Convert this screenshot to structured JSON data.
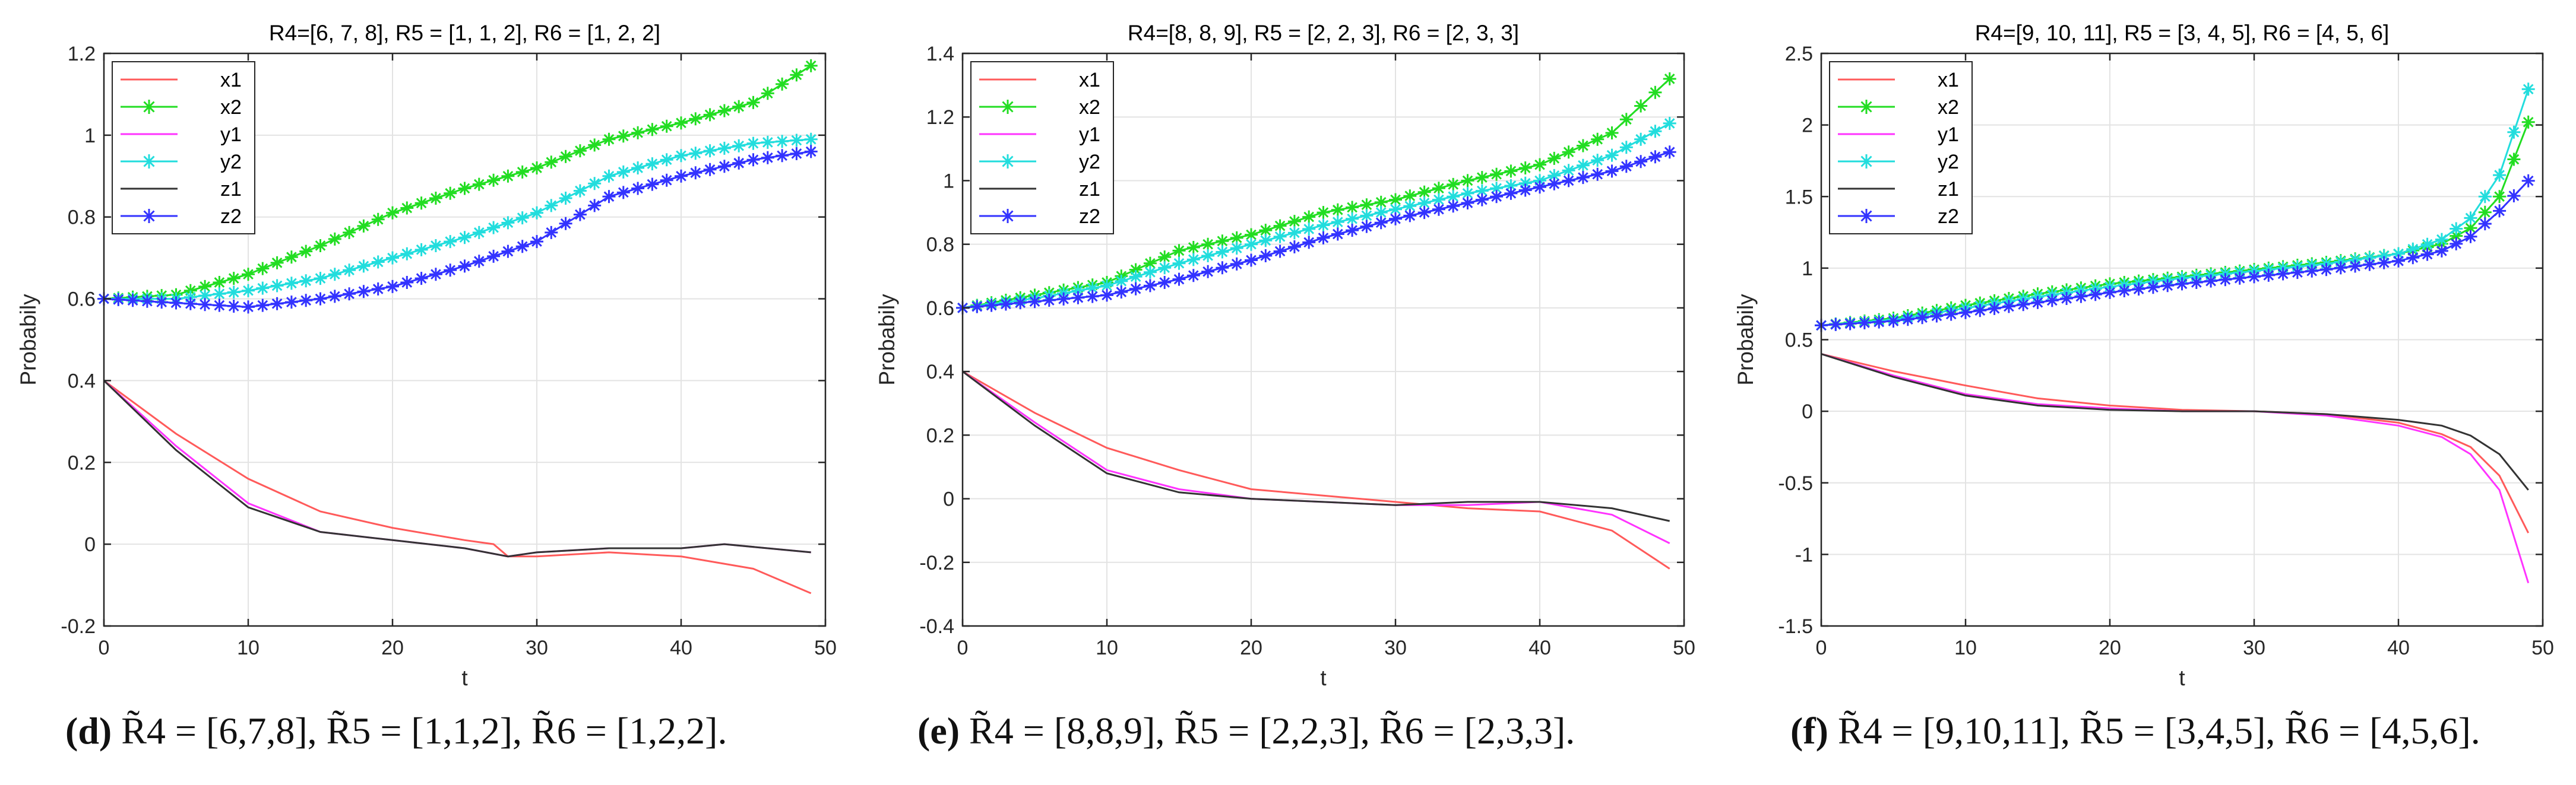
{
  "chart_data": [
    {
      "type": "line",
      "title": "R4=[6, 7, 8], R5 = [1, 1, 2], R6 = [1, 2, 2]",
      "xlabel": "t",
      "ylabel": "Probabily",
      "xlim": [
        0,
        50
      ],
      "ylim": [
        -0.2,
        1.2
      ],
      "xticks": [
        0,
        10,
        20,
        30,
        40,
        50
      ],
      "yticks": [
        -0.2,
        0,
        0.2,
        0.4,
        0.6,
        0.8,
        1,
        1.2
      ],
      "xtick_labels": [
        "0",
        "10",
        "20",
        "30",
        "40",
        "50"
      ],
      "ytick_labels": [
        "-0.2",
        "0",
        "0.2",
        "0.4",
        "0.6",
        "0.8",
        "1",
        "1.2"
      ],
      "grid": true,
      "legend": "top-left",
      "caption": {
        "letter": "(d)",
        "text": "R̃4 = [6,7,8], R̃5 = [1,1,2], R̃6 = [1,2,2]."
      },
      "series": [
        {
          "name": "x1",
          "color": "#ff5a5a",
          "marker": "none",
          "x": [
            0,
            5,
            10,
            15,
            20,
            25,
            27,
            28,
            30,
            35,
            40,
            45,
            49
          ],
          "y": [
            0.4,
            0.27,
            0.16,
            0.08,
            0.04,
            0.01,
            0.0,
            -0.03,
            -0.03,
            -0.02,
            -0.03,
            -0.06,
            -0.12
          ]
        },
        {
          "name": "x2",
          "color": "#22dd22",
          "marker": "star",
          "x": [
            0,
            5,
            10,
            15,
            20,
            25,
            30,
            35,
            40,
            45,
            49
          ],
          "y": [
            0.6,
            0.61,
            0.66,
            0.73,
            0.81,
            0.87,
            0.92,
            0.99,
            1.03,
            1.08,
            1.17
          ]
        },
        {
          "name": "y1",
          "color": "#ff33ff",
          "marker": "none",
          "x": [
            0,
            5,
            10,
            15,
            20,
            25,
            28,
            30,
            35,
            40,
            43,
            49
          ],
          "y": [
            0.4,
            0.24,
            0.1,
            0.03,
            0.01,
            -0.01,
            -0.03,
            -0.02,
            -0.01,
            -0.01,
            0.0,
            -0.02
          ]
        },
        {
          "name": "y2",
          "color": "#22dddd",
          "marker": "star",
          "x": [
            0,
            5,
            10,
            15,
            20,
            25,
            30,
            35,
            40,
            45,
            49
          ],
          "y": [
            0.6,
            0.6,
            0.62,
            0.65,
            0.7,
            0.75,
            0.81,
            0.9,
            0.95,
            0.98,
            0.99
          ]
        },
        {
          "name": "z1",
          "color": "#333333",
          "marker": "none",
          "x": [
            0,
            5,
            10,
            15,
            20,
            25,
            28,
            30,
            35,
            40,
            43,
            49
          ],
          "y": [
            0.4,
            0.23,
            0.09,
            0.03,
            0.01,
            -0.01,
            -0.03,
            -0.02,
            -0.01,
            -0.01,
            0.0,
            -0.02
          ]
        },
        {
          "name": "z2",
          "color": "#3333ff",
          "marker": "star",
          "x": [
            0,
            5,
            10,
            15,
            20,
            25,
            30,
            35,
            40,
            45,
            49
          ],
          "y": [
            0.6,
            0.59,
            0.58,
            0.6,
            0.63,
            0.68,
            0.74,
            0.85,
            0.9,
            0.94,
            0.96
          ]
        }
      ]
    },
    {
      "type": "line",
      "title": "R4=[8, 8, 9], R5 = [2, 2, 3], R6 = [2, 3, 3]",
      "xlabel": "t",
      "ylabel": "Probabily",
      "xlim": [
        0,
        50
      ],
      "ylim": [
        -0.4,
        1.4
      ],
      "xticks": [
        0,
        10,
        20,
        30,
        40,
        50
      ],
      "yticks": [
        -0.4,
        -0.2,
        0,
        0.2,
        0.4,
        0.6,
        0.8,
        1,
        1.2,
        1.4
      ],
      "xtick_labels": [
        "0",
        "10",
        "20",
        "30",
        "40",
        "50"
      ],
      "ytick_labels": [
        "-0.4",
        "-0.2",
        "0",
        "0.2",
        "0.4",
        "0.6",
        "0.8",
        "1",
        "1.2",
        "1.4"
      ],
      "grid": true,
      "legend": "top-left",
      "caption": {
        "letter": "(e)",
        "text": "R̃4 = [8,8,9], R̃5 = [2,2,3], R̃6 = [2,3,3]."
      },
      "series": [
        {
          "name": "x1",
          "color": "#ff5a5a",
          "marker": "none",
          "x": [
            0,
            5,
            10,
            15,
            20,
            25,
            30,
            35,
            40,
            45,
            49
          ],
          "y": [
            0.4,
            0.27,
            0.16,
            0.09,
            0.03,
            0.01,
            -0.01,
            -0.03,
            -0.04,
            -0.1,
            -0.22
          ]
        },
        {
          "name": "x2",
          "color": "#22dd22",
          "marker": "star",
          "x": [
            0,
            5,
            10,
            15,
            20,
            25,
            30,
            35,
            40,
            45,
            49
          ],
          "y": [
            0.6,
            0.64,
            0.68,
            0.78,
            0.83,
            0.9,
            0.94,
            1.0,
            1.05,
            1.15,
            1.32
          ]
        },
        {
          "name": "y1",
          "color": "#ff33ff",
          "marker": "none",
          "x": [
            0,
            5,
            10,
            15,
            20,
            25,
            30,
            35,
            40,
            45,
            49
          ],
          "y": [
            0.4,
            0.24,
            0.09,
            0.03,
            0.0,
            -0.01,
            -0.02,
            -0.02,
            -0.01,
            -0.05,
            -0.14
          ]
        },
        {
          "name": "y2",
          "color": "#22dddd",
          "marker": "star",
          "x": [
            0,
            5,
            10,
            15,
            20,
            25,
            30,
            35,
            40,
            45,
            49
          ],
          "y": [
            0.6,
            0.63,
            0.67,
            0.74,
            0.8,
            0.86,
            0.91,
            0.96,
            1.0,
            1.08,
            1.18
          ]
        },
        {
          "name": "z1",
          "color": "#333333",
          "marker": "none",
          "x": [
            0,
            5,
            10,
            15,
            20,
            25,
            30,
            35,
            40,
            45,
            49
          ],
          "y": [
            0.4,
            0.23,
            0.08,
            0.02,
            0.0,
            -0.01,
            -0.02,
            -0.01,
            -0.01,
            -0.03,
            -0.07
          ]
        },
        {
          "name": "z2",
          "color": "#3333ff",
          "marker": "star",
          "x": [
            0,
            5,
            10,
            15,
            20,
            25,
            30,
            35,
            40,
            45,
            49
          ],
          "y": [
            0.6,
            0.62,
            0.64,
            0.69,
            0.75,
            0.82,
            0.88,
            0.93,
            0.98,
            1.03,
            1.09
          ]
        }
      ]
    },
    {
      "type": "line",
      "title": "R4=[9, 10, 11], R5 = [3, 4, 5], R6 = [4, 5, 6]",
      "xlabel": "t",
      "ylabel": "Probabily",
      "xlim": [
        0,
        50
      ],
      "ylim": [
        -1.5,
        2.5
      ],
      "xticks": [
        0,
        10,
        20,
        30,
        40,
        50
      ],
      "yticks": [
        -1.5,
        -1,
        -0.5,
        0,
        0.5,
        1,
        1.5,
        2,
        2.5
      ],
      "xtick_labels": [
        "0",
        "10",
        "20",
        "30",
        "40",
        "50"
      ],
      "ytick_labels": [
        "-1.5",
        "-1",
        "-0.5",
        "0",
        "0.5",
        "1",
        "1.5",
        "2",
        "2.5"
      ],
      "grid": true,
      "legend": "top-left",
      "caption": {
        "letter": "(f)",
        "text": "R̃4 = [9,10,11], R̃5 = [3,4,5], R̃6 = [4,5,6]."
      },
      "series": [
        {
          "name": "x1",
          "color": "#ff5a5a",
          "marker": "none",
          "x": [
            0,
            5,
            10,
            15,
            20,
            25,
            30,
            35,
            40,
            43,
            45,
            47,
            49
          ],
          "y": [
            0.4,
            0.28,
            0.18,
            0.09,
            0.04,
            0.01,
            0.0,
            -0.02,
            -0.08,
            -0.16,
            -0.25,
            -0.45,
            -0.85
          ]
        },
        {
          "name": "x2",
          "color": "#22dd22",
          "marker": "star",
          "x": [
            0,
            5,
            10,
            15,
            20,
            25,
            30,
            35,
            40,
            43,
            45,
            47,
            49
          ],
          "y": [
            0.6,
            0.65,
            0.74,
            0.82,
            0.89,
            0.94,
            0.99,
            1.04,
            1.1,
            1.17,
            1.28,
            1.5,
            2.02
          ]
        },
        {
          "name": "y1",
          "color": "#ff33ff",
          "marker": "none",
          "x": [
            0,
            5,
            10,
            15,
            20,
            25,
            30,
            35,
            40,
            43,
            45,
            47,
            49
          ],
          "y": [
            0.4,
            0.25,
            0.12,
            0.05,
            0.02,
            0.0,
            0.0,
            -0.03,
            -0.1,
            -0.18,
            -0.3,
            -0.55,
            -1.2
          ]
        },
        {
          "name": "y2",
          "color": "#22dddd",
          "marker": "star",
          "x": [
            0,
            5,
            10,
            15,
            20,
            25,
            30,
            35,
            40,
            43,
            45,
            47,
            49
          ],
          "y": [
            0.6,
            0.64,
            0.72,
            0.8,
            0.87,
            0.93,
            0.98,
            1.03,
            1.1,
            1.2,
            1.35,
            1.65,
            2.25
          ]
        },
        {
          "name": "z1",
          "color": "#333333",
          "marker": "none",
          "x": [
            0,
            5,
            10,
            15,
            20,
            25,
            30,
            35,
            40,
            43,
            45,
            47,
            49
          ],
          "y": [
            0.4,
            0.24,
            0.11,
            0.04,
            0.01,
            0.0,
            0.0,
            -0.02,
            -0.06,
            -0.1,
            -0.17,
            -0.3,
            -0.55
          ]
        },
        {
          "name": "z2",
          "color": "#3333ff",
          "marker": "star",
          "x": [
            0,
            5,
            10,
            15,
            20,
            25,
            30,
            35,
            40,
            43,
            45,
            47,
            49
          ],
          "y": [
            0.6,
            0.63,
            0.69,
            0.76,
            0.83,
            0.89,
            0.94,
            0.99,
            1.05,
            1.12,
            1.22,
            1.4,
            1.61
          ]
        }
      ]
    }
  ]
}
